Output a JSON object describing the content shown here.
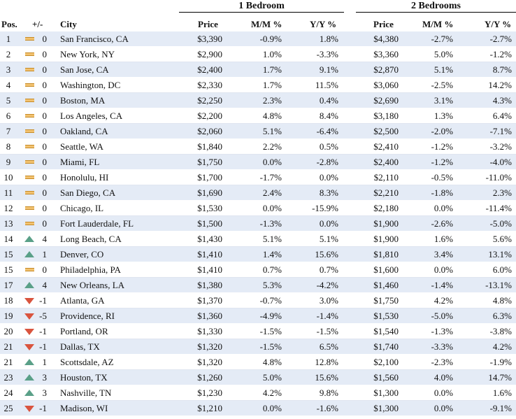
{
  "headers": {
    "group1": "1 Bedroom",
    "group2": "2 Bedrooms",
    "pos": "Pos.",
    "change": "+/-",
    "city": "City",
    "price1": "Price",
    "mm1": "M/M %",
    "yy1": "Y/Y %",
    "price2": "Price",
    "mm2": "M/M %",
    "yy2": "Y/Y %"
  },
  "icon_colors": {
    "flat": "#f2c270",
    "up": "#5aa088",
    "down": "#d9543e",
    "row_stripe": "#e4ebf6"
  },
  "rows": [
    {
      "pos": "1",
      "trend": "flat",
      "change": "0",
      "city": "San Francisco, CA",
      "p1": "$3,390",
      "m1": "-0.9%",
      "y1": "1.8%",
      "p2": "$4,380",
      "m2": "-2.7%",
      "y2": "-2.7%"
    },
    {
      "pos": "2",
      "trend": "flat",
      "change": "0",
      "city": "New York, NY",
      "p1": "$2,900",
      "m1": "1.0%",
      "y1": "-3.3%",
      "p2": "$3,360",
      "m2": "5.0%",
      "y2": "-1.2%"
    },
    {
      "pos": "3",
      "trend": "flat",
      "change": "0",
      "city": "San Jose, CA",
      "p1": "$2,400",
      "m1": "1.7%",
      "y1": "9.1%",
      "p2": "$2,870",
      "m2": "5.1%",
      "y2": "8.7%"
    },
    {
      "pos": "4",
      "trend": "flat",
      "change": "0",
      "city": "Washington, DC",
      "p1": "$2,330",
      "m1": "1.7%",
      "y1": "11.5%",
      "p2": "$3,060",
      "m2": "-2.5%",
      "y2": "14.2%"
    },
    {
      "pos": "5",
      "trend": "flat",
      "change": "0",
      "city": "Boston, MA",
      "p1": "$2,250",
      "m1": "2.3%",
      "y1": "0.4%",
      "p2": "$2,690",
      "m2": "3.1%",
      "y2": "4.3%"
    },
    {
      "pos": "6",
      "trend": "flat",
      "change": "0",
      "city": "Los Angeles, CA",
      "p1": "$2,200",
      "m1": "4.8%",
      "y1": "8.4%",
      "p2": "$3,180",
      "m2": "1.3%",
      "y2": "6.4%"
    },
    {
      "pos": "7",
      "trend": "flat",
      "change": "0",
      "city": "Oakland, CA",
      "p1": "$2,060",
      "m1": "5.1%",
      "y1": "-6.4%",
      "p2": "$2,500",
      "m2": "-2.0%",
      "y2": "-7.1%"
    },
    {
      "pos": "8",
      "trend": "flat",
      "change": "0",
      "city": "Seattle, WA",
      "p1": "$1,840",
      "m1": "2.2%",
      "y1": "0.5%",
      "p2": "$2,410",
      "m2": "-1.2%",
      "y2": "-3.2%"
    },
    {
      "pos": "9",
      "trend": "flat",
      "change": "0",
      "city": "Miami, FL",
      "p1": "$1,750",
      "m1": "0.0%",
      "y1": "-2.8%",
      "p2": "$2,400",
      "m2": "-1.2%",
      "y2": "-4.0%"
    },
    {
      "pos": "10",
      "trend": "flat",
      "change": "0",
      "city": "Honolulu, HI",
      "p1": "$1,700",
      "m1": "-1.7%",
      "y1": "0.0%",
      "p2": "$2,110",
      "m2": "-0.5%",
      "y2": "-11.0%"
    },
    {
      "pos": "11",
      "trend": "flat",
      "change": "0",
      "city": "San Diego, CA",
      "p1": "$1,690",
      "m1": "2.4%",
      "y1": "8.3%",
      "p2": "$2,210",
      "m2": "-1.8%",
      "y2": "2.3%"
    },
    {
      "pos": "12",
      "trend": "flat",
      "change": "0",
      "city": "Chicago, IL",
      "p1": "$1,530",
      "m1": "0.0%",
      "y1": "-15.9%",
      "p2": "$2,180",
      "m2": "0.0%",
      "y2": "-11.4%"
    },
    {
      "pos": "13",
      "trend": "flat",
      "change": "0",
      "city": "Fort Lauderdale, FL",
      "p1": "$1,500",
      "m1": "-1.3%",
      "y1": "0.0%",
      "p2": "$1,900",
      "m2": "-2.6%",
      "y2": "-5.0%"
    },
    {
      "pos": "14",
      "trend": "up",
      "change": "4",
      "city": "Long Beach, CA",
      "p1": "$1,430",
      "m1": "5.1%",
      "y1": "5.1%",
      "p2": "$1,900",
      "m2": "1.6%",
      "y2": "5.6%"
    },
    {
      "pos": "15",
      "trend": "up",
      "change": "1",
      "city": "Denver, CO",
      "p1": "$1,410",
      "m1": "1.4%",
      "y1": "15.6%",
      "p2": "$1,810",
      "m2": "3.4%",
      "y2": "13.1%"
    },
    {
      "pos": "15",
      "trend": "flat",
      "change": "0",
      "city": "Philadelphia, PA",
      "p1": "$1,410",
      "m1": "0.7%",
      "y1": "0.7%",
      "p2": "$1,600",
      "m2": "0.0%",
      "y2": "6.0%"
    },
    {
      "pos": "17",
      "trend": "up",
      "change": "4",
      "city": "New Orleans, LA",
      "p1": "$1,380",
      "m1": "5.3%",
      "y1": "-4.2%",
      "p2": "$1,460",
      "m2": "-1.4%",
      "y2": "-13.1%"
    },
    {
      "pos": "18",
      "trend": "down",
      "change": "-1",
      "city": "Atlanta, GA",
      "p1": "$1,370",
      "m1": "-0.7%",
      "y1": "3.0%",
      "p2": "$1,750",
      "m2": "4.2%",
      "y2": "4.8%"
    },
    {
      "pos": "19",
      "trend": "down",
      "change": "-5",
      "city": "Providence, RI",
      "p1": "$1,360",
      "m1": "-4.9%",
      "y1": "-1.4%",
      "p2": "$1,530",
      "m2": "-5.0%",
      "y2": "6.3%"
    },
    {
      "pos": "20",
      "trend": "down",
      "change": "-1",
      "city": "Portland, OR",
      "p1": "$1,330",
      "m1": "-1.5%",
      "y1": "-1.5%",
      "p2": "$1,540",
      "m2": "-1.3%",
      "y2": "-3.8%"
    },
    {
      "pos": "21",
      "trend": "down",
      "change": "-1",
      "city": "Dallas, TX",
      "p1": "$1,320",
      "m1": "-1.5%",
      "y1": "6.5%",
      "p2": "$1,740",
      "m2": "-3.3%",
      "y2": "4.2%"
    },
    {
      "pos": "21",
      "trend": "up",
      "change": "1",
      "city": "Scottsdale, AZ",
      "p1": "$1,320",
      "m1": "4.8%",
      "y1": "12.8%",
      "p2": "$2,100",
      "m2": "-2.3%",
      "y2": "-1.9%"
    },
    {
      "pos": "23",
      "trend": "up",
      "change": "3",
      "city": "Houston, TX",
      "p1": "$1,260",
      "m1": "5.0%",
      "y1": "15.6%",
      "p2": "$1,560",
      "m2": "4.0%",
      "y2": "14.7%"
    },
    {
      "pos": "24",
      "trend": "up",
      "change": "3",
      "city": "Nashville, TN",
      "p1": "$1,230",
      "m1": "4.2%",
      "y1": "9.8%",
      "p2": "$1,300",
      "m2": "0.0%",
      "y2": "1.6%"
    },
    {
      "pos": "25",
      "trend": "down",
      "change": "-1",
      "city": "Madison, WI",
      "p1": "$1,210",
      "m1": "0.0%",
      "y1": "-1.6%",
      "p2": "$1,300",
      "m2": "0.0%",
      "y2": "-9.1%"
    }
  ]
}
